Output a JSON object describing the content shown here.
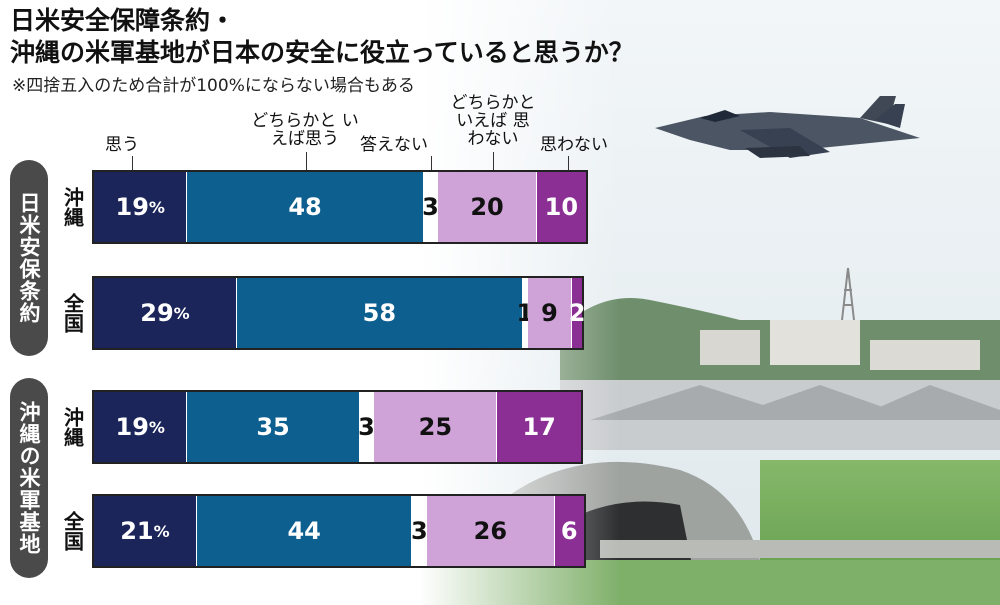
{
  "title_line1": "日米安全保障条約・",
  "title_line2": "沖縄の米軍基地が日本の安全に役立っていると思うか？",
  "note": "※四捨五入のため合計が100%にならない場合もある",
  "colors": {
    "omou": "#1b2559",
    "dochiraka_omou": "#0d5f8f",
    "kotaenai": "#ffffff",
    "dochiraka_omowanai": "#cfa3d8",
    "omowanai": "#8b2f95"
  },
  "chart_data": {
    "type": "bar",
    "orientation": "horizontal",
    "stacked": true,
    "unit": "%",
    "categories": [
      "思う",
      "どちらかと いえば思う",
      "答えない",
      "どちらかと いえば 思わない",
      "思わない"
    ],
    "groups": [
      {
        "name": "日米安保条約",
        "rows": [
          {
            "label": "沖縄",
            "values": [
              19,
              48,
              3,
              20,
              10
            ]
          },
          {
            "label": "全国",
            "values": [
              29,
              58,
              1,
              9,
              2
            ]
          }
        ]
      },
      {
        "name": "沖縄の米軍基地",
        "rows": [
          {
            "label": "沖縄",
            "values": [
              19,
              35,
              3,
              25,
              17
            ]
          },
          {
            "label": "全国",
            "values": [
              21,
              44,
              3,
              26,
              6
            ]
          }
        ]
      }
    ]
  }
}
